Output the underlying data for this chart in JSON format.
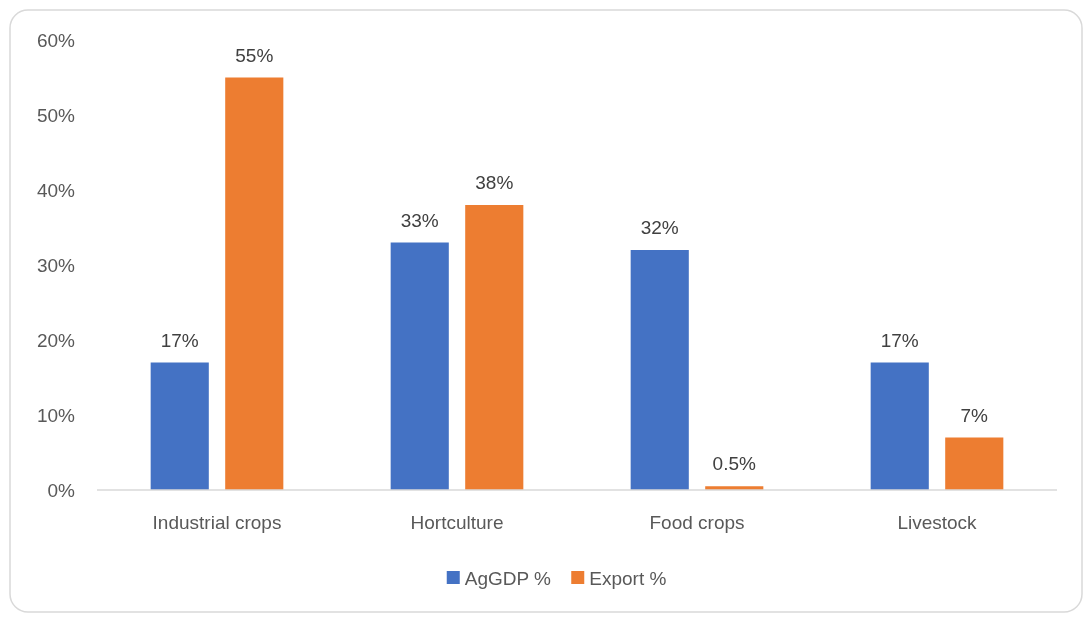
{
  "chart_data": {
    "type": "bar",
    "categories": [
      "Industrial crops",
      "Hortculture",
      "Food crops",
      "Livestock"
    ],
    "series": [
      {
        "name": "AgGDP %",
        "color": "#4472c4",
        "values": [
          17,
          33,
          32,
          17
        ],
        "value_labels": [
          "17%",
          "33%",
          "32%",
          "17%"
        ]
      },
      {
        "name": "Export %",
        "color": "#ed7d31",
        "values": [
          55,
          38,
          0.5,
          7
        ],
        "value_labels": [
          "55%",
          "38%",
          "0.5%",
          "7%"
        ]
      }
    ],
    "ylim": [
      0,
      60
    ],
    "yticks": [
      {
        "value": 0,
        "label": "0%"
      },
      {
        "value": 10,
        "label": "10%"
      },
      {
        "value": 20,
        "label": "20%"
      },
      {
        "value": 30,
        "label": "30%"
      },
      {
        "value": 40,
        "label": "40%"
      },
      {
        "value": 50,
        "label": "50%"
      },
      {
        "value": 60,
        "label": "60%"
      }
    ],
    "grid": false,
    "legend": "bottom"
  }
}
